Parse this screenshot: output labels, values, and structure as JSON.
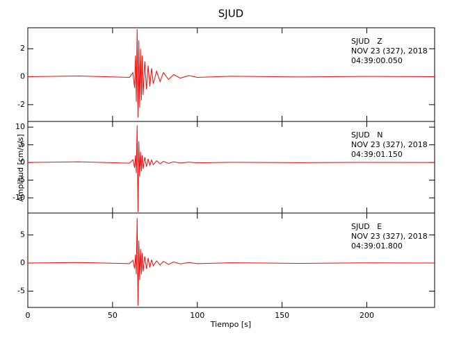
{
  "chart_data": [
    {
      "type": "line",
      "title": "SJUD",
      "annotations": [
        "SJUD   Z",
        "NOV 23 (327), 2018",
        "04:39:00.050"
      ],
      "x": [
        0,
        30,
        60,
        62,
        63,
        63.5,
        64,
        64.5,
        65,
        65.5,
        66,
        66.5,
        67,
        67.5,
        68,
        69,
        70,
        71,
        72,
        73,
        74,
        76,
        78,
        80,
        83,
        86,
        90,
        95,
        100,
        120,
        160,
        200,
        240
      ],
      "series": [
        {
          "color": "#ff0000",
          "values": [
            0,
            0.05,
            -0.05,
            0.3,
            -0.8,
            1.5,
            -1.8,
            3.4,
            -2.9,
            2.6,
            -2.2,
            2.0,
            -1.7,
            1.5,
            -1.3,
            1.1,
            -0.9,
            0.8,
            -0.7,
            0.6,
            -0.5,
            0.4,
            -0.35,
            0.3,
            -0.2,
            0.15,
            -0.1,
            0.08,
            -0.05,
            0.03,
            -0.02,
            0.02,
            0
          ]
        }
      ],
      "xlim": [
        0,
        240
      ],
      "ylim": [
        -3.2,
        3.5
      ],
      "yticks": [
        -2,
        0,
        2
      ]
    },
    {
      "type": "line",
      "ylabel": "Amplitud [cm/s/s]",
      "annotations": [
        "SJUD   N",
        "NOV 23 (327), 2018",
        "04:39:01.150"
      ],
      "x": [
        0,
        30,
        60,
        62,
        63,
        63.5,
        64,
        64.5,
        65,
        65.5,
        66,
        66.5,
        67,
        67.5,
        68,
        69,
        70,
        71,
        72,
        73,
        74,
        76,
        78,
        80,
        83,
        86,
        90,
        95,
        100,
        120,
        160,
        200,
        240
      ],
      "series": [
        {
          "color": "#ff0000",
          "values": [
            0,
            0.2,
            -0.2,
            0.8,
            -1.5,
            2,
            -3,
            10.5,
            -14,
            6,
            -4,
            3,
            -2.5,
            2,
            -1.8,
            1.5,
            -1.2,
            1,
            -0.8,
            0.7,
            -0.6,
            0.5,
            -0.4,
            0.3,
            -0.25,
            0.2,
            -0.15,
            0.1,
            -0.1,
            0.05,
            -0.05,
            0.03,
            0
          ]
        }
      ],
      "xlim": [
        0,
        240
      ],
      "ylim": [
        -14.3,
        11.6
      ],
      "yticks": [
        -10,
        -5,
        0,
        5,
        10
      ]
    },
    {
      "type": "line",
      "xlabel": "Tiempo [s]",
      "annotations": [
        "SJUD   E",
        "NOV 23 (327), 2018",
        "04:39:01.800"
      ],
      "x": [
        0,
        30,
        60,
        62,
        63,
        63.5,
        64,
        64.5,
        65,
        65.5,
        66,
        66.5,
        67,
        67.5,
        68,
        69,
        70,
        71,
        72,
        73,
        74,
        76,
        78,
        80,
        83,
        86,
        90,
        95,
        100,
        120,
        160,
        200,
        240
      ],
      "series": [
        {
          "color": "#ff0000",
          "values": [
            0,
            0.1,
            -0.1,
            0.5,
            -1,
            1.5,
            -2,
            8,
            -7.6,
            4,
            -3,
            2.5,
            -2,
            1.8,
            -1.5,
            1.2,
            -1,
            0.9,
            -0.8,
            0.6,
            -0.5,
            0.4,
            -0.35,
            0.3,
            -0.25,
            0.2,
            -0.15,
            0.1,
            -0.1,
            0.05,
            -0.05,
            0.03,
            0
          ]
        }
      ],
      "xlim": [
        0,
        240
      ],
      "ylim": [
        -7.9,
        8.9
      ],
      "yticks": [
        -5,
        0,
        5
      ],
      "xticks": [
        0,
        50,
        100,
        150,
        200
      ]
    }
  ]
}
